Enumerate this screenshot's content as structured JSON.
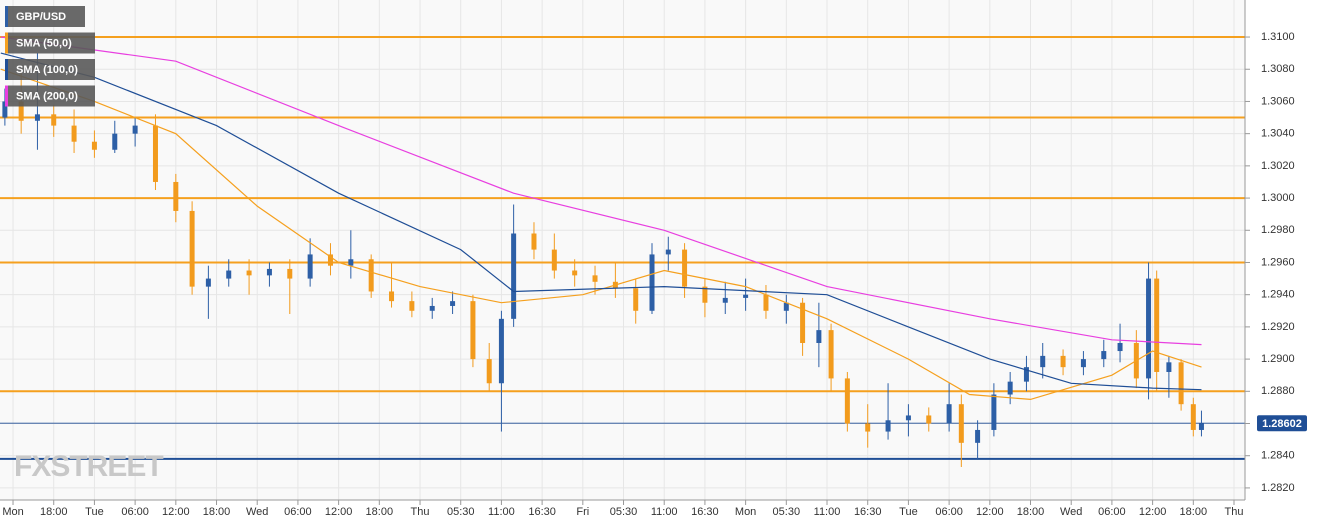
{
  "chart_data": {
    "type": "candlestick",
    "name": "GBP/USD",
    "color_up": "#2d5fa6",
    "color_down": "#f29b1d",
    "xlim": [
      -0.32,
      30.27
    ],
    "ylim": [
      1.28125,
      1.3123
    ],
    "grid": true,
    "xticks": [
      {
        "value": 0,
        "label": "Mon"
      },
      {
        "value": 1,
        "label": "18:00"
      },
      {
        "value": 2,
        "label": "Tue"
      },
      {
        "value": 3,
        "label": "06:00"
      },
      {
        "value": 4,
        "label": "12:00"
      },
      {
        "value": 5,
        "label": "18:00"
      },
      {
        "value": 6,
        "label": "Wed"
      },
      {
        "value": 7,
        "label": "06:00"
      },
      {
        "value": 8,
        "label": "12:00"
      },
      {
        "value": 9,
        "label": "18:00"
      },
      {
        "value": 10,
        "label": "Thu"
      },
      {
        "value": 11,
        "label": "05:30"
      },
      {
        "value": 12,
        "label": "11:00"
      },
      {
        "value": 13,
        "label": "16:30"
      },
      {
        "value": 14,
        "label": "Fri"
      },
      {
        "value": 15,
        "label": "05:30"
      },
      {
        "value": 16,
        "label": "11:00"
      },
      {
        "value": 17,
        "label": "16:30"
      },
      {
        "value": 18,
        "label": "Mon"
      },
      {
        "value": 19,
        "label": "05:30"
      },
      {
        "value": 20,
        "label": "11:00"
      },
      {
        "value": 21,
        "label": "16:30"
      },
      {
        "value": 22,
        "label": "Tue"
      },
      {
        "value": 23,
        "label": "06:00"
      },
      {
        "value": 24,
        "label": "12:00"
      },
      {
        "value": 25,
        "label": "18:00"
      },
      {
        "value": 26,
        "label": "Wed"
      },
      {
        "value": 27,
        "label": "06:00"
      },
      {
        "value": 28,
        "label": "12:00"
      },
      {
        "value": 29,
        "label": "18:00"
      },
      {
        "value": 30,
        "label": "Thu"
      }
    ],
    "yticks": [
      {
        "value": 1.282,
        "label": "1.2820"
      },
      {
        "value": 1.284,
        "label": "1.2840"
      },
      {
        "value": 1.286,
        "label": "1.2860"
      },
      {
        "value": 1.288,
        "label": "1.2880"
      },
      {
        "value": 1.29,
        "label": "1.2900"
      },
      {
        "value": 1.292,
        "label": "1.2920"
      },
      {
        "value": 1.294,
        "label": "1.2940"
      },
      {
        "value": 1.296,
        "label": "1.2960"
      },
      {
        "value": 1.298,
        "label": "1.2980"
      },
      {
        "value": 1.3,
        "label": "1.3000"
      },
      {
        "value": 1.302,
        "label": "1.3020"
      },
      {
        "value": 1.304,
        "label": "1.3040"
      },
      {
        "value": 1.306,
        "label": "1.3060"
      },
      {
        "value": 1.308,
        "label": "1.3080"
      },
      {
        "value": 1.31,
        "label": "1.3100"
      }
    ],
    "x": [
      -0.2,
      0.2,
      0.6,
      1.0,
      1.5,
      2.0,
      2.5,
      3.0,
      3.5,
      4.0,
      4.4,
      4.8,
      5.3,
      5.8,
      6.3,
      6.8,
      7.3,
      7.8,
      8.3,
      8.8,
      9.3,
      9.8,
      10.3,
      10.8,
      11.3,
      11.7,
      12.0,
      12.3,
      12.8,
      13.3,
      13.8,
      14.3,
      14.8,
      15.3,
      15.7,
      16.1,
      16.5,
      17.0,
      17.5,
      18.0,
      18.5,
      19.0,
      19.4,
      19.8,
      20.1,
      20.5,
      21.0,
      21.5,
      22.0,
      22.5,
      23.0,
      23.3,
      23.7,
      24.1,
      24.5,
      24.9,
      25.3,
      25.8,
      26.3,
      26.8,
      27.2,
      27.6,
      27.9,
      28.1,
      28.4,
      28.7,
      29.0,
      29.2
    ],
    "open": [
      1.305,
      1.306,
      1.3048,
      1.3052,
      1.3045,
      1.3035,
      1.303,
      1.304,
      1.3045,
      1.301,
      1.2992,
      1.2945,
      1.295,
      1.2955,
      1.2952,
      1.2956,
      1.295,
      1.2965,
      1.2958,
      1.2962,
      1.2942,
      1.2936,
      1.293,
      1.2933,
      1.2936,
      1.29,
      1.2885,
      1.2925,
      1.2978,
      1.2968,
      1.2955,
      1.2952,
      1.2948,
      1.2944,
      1.293,
      1.2965,
      1.2968,
      1.2945,
      1.2935,
      1.2938,
      1.294,
      1.293,
      1.2935,
      1.291,
      1.2918,
      1.2888,
      1.286,
      1.2855,
      1.2862,
      1.2865,
      1.286,
      1.2872,
      1.2848,
      1.2856,
      1.2878,
      1.2886,
      1.2895,
      1.2902,
      1.2895,
      1.29,
      1.2905,
      1.291,
      1.2888,
      1.295,
      1.2892,
      1.2898,
      1.2872,
      1.2856
    ],
    "high": [
      1.3068,
      1.3078,
      1.309,
      1.3058,
      1.3055,
      1.3042,
      1.3048,
      1.305,
      1.3052,
      1.3015,
      1.2998,
      1.2958,
      1.2962,
      1.2962,
      1.296,
      1.2962,
      1.2975,
      1.2972,
      1.298,
      1.2965,
      1.296,
      1.2942,
      1.2938,
      1.2942,
      1.294,
      1.291,
      1.293,
      1.2996,
      1.2985,
      1.2978,
      1.2962,
      1.2958,
      1.296,
      1.295,
      1.2972,
      1.2976,
      1.2972,
      1.295,
      1.2948,
      1.295,
      1.2946,
      1.294,
      1.2938,
      1.2935,
      1.2922,
      1.2892,
      1.2872,
      1.2885,
      1.2872,
      1.287,
      1.2885,
      1.2878,
      1.2862,
      1.2885,
      1.2892,
      1.2902,
      1.291,
      1.2906,
      1.2905,
      1.2912,
      1.2922,
      1.2918,
      1.296,
      1.2955,
      1.2902,
      1.29,
      1.2876,
      1.2868
    ],
    "low": [
      1.3045,
      1.304,
      1.303,
      1.3038,
      1.3028,
      1.3025,
      1.3028,
      1.3032,
      1.3005,
      1.2985,
      1.294,
      1.2925,
      1.2945,
      1.294,
      1.2945,
      1.2928,
      1.2945,
      1.2952,
      1.295,
      1.2938,
      1.2932,
      1.2926,
      1.2925,
      1.2928,
      1.2895,
      1.288,
      1.2855,
      1.292,
      1.2962,
      1.295,
      1.2945,
      1.294,
      1.2938,
      1.2922,
      1.2928,
      1.2955,
      1.2938,
      1.2926,
      1.2928,
      1.293,
      1.2925,
      1.2922,
      1.2902,
      1.2895,
      1.288,
      1.2855,
      1.2845,
      1.285,
      1.2852,
      1.2855,
      1.2855,
      1.2833,
      1.2838,
      1.2852,
      1.2872,
      1.288,
      1.2888,
      1.289,
      1.289,
      1.2895,
      1.2898,
      1.2882,
      1.2875,
      1.288,
      1.2876,
      1.2868,
      1.2852,
      1.2852
    ],
    "close": [
      1.306,
      1.3048,
      1.3052,
      1.3045,
      1.3035,
      1.303,
      1.304,
      1.3045,
      1.301,
      1.2992,
      1.2945,
      1.295,
      1.2955,
      1.2952,
      1.2956,
      1.295,
      1.2965,
      1.2958,
      1.2962,
      1.2942,
      1.2936,
      1.293,
      1.2933,
      1.2936,
      1.29,
      1.2885,
      1.2925,
      1.2978,
      1.2968,
      1.2955,
      1.2952,
      1.2948,
      1.2944,
      1.293,
      1.2965,
      1.2968,
      1.2945,
      1.2935,
      1.2938,
      1.294,
      1.293,
      1.2935,
      1.291,
      1.2918,
      1.2888,
      1.286,
      1.2855,
      1.2862,
      1.2865,
      1.286,
      1.2872,
      1.2848,
      1.2856,
      1.2878,
      1.2886,
      1.2895,
      1.2902,
      1.2895,
      1.29,
      1.2905,
      1.291,
      1.2888,
      1.295,
      1.2892,
      1.2898,
      1.2872,
      1.2856,
      1.286
    ],
    "series": [
      {
        "name": "SMA (50,0)",
        "color": "#f5a01e",
        "x": [
          -0.3,
          2,
          4,
          6,
          8,
          10,
          12,
          14,
          16,
          18,
          20,
          22,
          23.5,
          25,
          27,
          28,
          29.2
        ],
        "values": [
          1.308,
          1.306,
          1.304,
          1.2995,
          1.296,
          1.2945,
          1.2935,
          1.294,
          1.2955,
          1.2945,
          1.2925,
          1.29,
          1.2878,
          1.2875,
          1.289,
          1.2905,
          1.2895
        ]
      },
      {
        "name": "SMA (100,0)",
        "color": "#1f4e96",
        "x": [
          -0.3,
          2,
          5,
          8,
          11,
          12.3,
          16,
          20,
          22,
          24,
          26,
          28,
          29.2
        ],
        "values": [
          1.309,
          1.3075,
          1.3045,
          1.3003,
          1.2968,
          1.2942,
          1.2945,
          1.294,
          1.292,
          1.29,
          1.2885,
          1.2882,
          1.2881
        ]
      },
      {
        "name": "SMA (200,0)",
        "color": "#e83fe0",
        "x": [
          -0.3,
          4,
          8,
          12.3,
          16,
          20,
          24,
          27,
          29.2
        ],
        "values": [
          1.31,
          1.3085,
          1.3045,
          1.3003,
          1.298,
          1.2945,
          1.2925,
          1.2912,
          1.2909
        ]
      }
    ],
    "levels": [
      {
        "value": 1.31,
        "color": "#f5a01e"
      },
      {
        "value": 1.305,
        "color": "#f5a01e"
      },
      {
        "value": 1.3,
        "color": "#f5a01e"
      },
      {
        "value": 1.296,
        "color": "#f5a01e"
      },
      {
        "value": 1.288,
        "color": "#f5a01e"
      },
      {
        "value": 1.2838,
        "color": "#1f4e96"
      }
    ],
    "last_price": 1.28602,
    "watermark": "FXSTREET"
  }
}
